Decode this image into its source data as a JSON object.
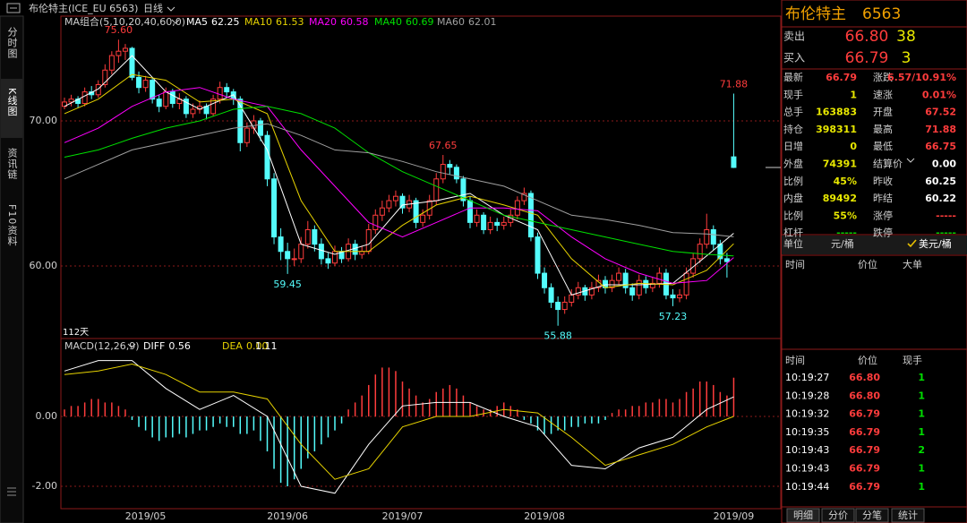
{
  "header": {
    "instrument": "布伦特主(ICE_EU 6563)",
    "period": "日线"
  },
  "side_tabs": [
    "分时图",
    "K线图",
    "资讯链",
    "F10资料"
  ],
  "chart_data": [
    {
      "type": "candlestick",
      "indicator": "MA组合(5,10,20,40,60,0)",
      "days_label": "112天",
      "up_color": "#ff3c3c",
      "down_color": "#54fcfc",
      "grid": true,
      "ylim": [
        55.06,
        77.22
      ],
      "yticks": [
        {
          "value": 70,
          "label": "70.00"
        },
        {
          "value": 60,
          "label": "60.00"
        }
      ],
      "xticks": [
        {
          "value": 12,
          "label": "2019/05"
        },
        {
          "value": 33,
          "label": "2019/06"
        },
        {
          "value": 50,
          "label": "2019/07"
        },
        {
          "value": 71,
          "label": "2019/08"
        },
        {
          "value": 99,
          "label": "2019/09"
        }
      ],
      "candles": [
        [
          71.0,
          71.6,
          70.8,
          71.3
        ],
        [
          71.3,
          71.8,
          71.0,
          71.5
        ],
        [
          71.5,
          71.7,
          70.9,
          71.2
        ],
        [
          71.2,
          72.3,
          71.0,
          72.0
        ],
        [
          72.0,
          72.4,
          71.5,
          71.8
        ],
        [
          71.8,
          72.8,
          71.6,
          72.5
        ],
        [
          72.5,
          73.9,
          72.3,
          73.5
        ],
        [
          73.5,
          74.8,
          73.2,
          74.5
        ],
        [
          74.5,
          75.6,
          74.0,
          74.8
        ],
        [
          74.8,
          75.3,
          74.2,
          75.0
        ],
        [
          75.0,
          75.1,
          72.8,
          73.0
        ],
        [
          73.0,
          73.4,
          71.9,
          72.3
        ],
        [
          72.3,
          73.1,
          72.0,
          72.8
        ],
        [
          72.8,
          73.0,
          71.2,
          71.5
        ],
        [
          71.5,
          71.8,
          70.6,
          71.0
        ],
        [
          71.0,
          72.3,
          70.8,
          72.0
        ],
        [
          72.0,
          72.2,
          70.9,
          71.2
        ],
        [
          71.2,
          71.9,
          70.8,
          71.5
        ],
        [
          71.5,
          71.7,
          70.2,
          70.5
        ],
        [
          70.5,
          71.2,
          70.2,
          70.8
        ],
        [
          70.8,
          71.4,
          70.5,
          71.0
        ],
        [
          71.0,
          71.2,
          70.1,
          70.5
        ],
        [
          70.5,
          71.8,
          70.3,
          71.5
        ],
        [
          71.5,
          72.7,
          71.2,
          72.3
        ],
        [
          72.3,
          72.6,
          71.6,
          72.0
        ],
        [
          72.0,
          72.2,
          71.1,
          71.5
        ],
        [
          71.5,
          71.7,
          67.9,
          68.5
        ],
        [
          68.5,
          69.9,
          68.2,
          69.5
        ],
        [
          69.5,
          70.4,
          69.1,
          70.0
        ],
        [
          70.0,
          70.2,
          68.6,
          69.0
        ],
        [
          69.0,
          69.3,
          65.5,
          66.0
        ],
        [
          66.0,
          66.4,
          61.5,
          62.0
        ],
        [
          62.0,
          62.6,
          60.4,
          61.0
        ],
        [
          61.0,
          61.6,
          59.45,
          60.5
        ],
        [
          60.5,
          61.2,
          60.0,
          60.5
        ],
        [
          60.5,
          62.0,
          60.2,
          61.5
        ],
        [
          61.5,
          63.1,
          61.2,
          62.5
        ],
        [
          62.5,
          62.8,
          61.0,
          61.5
        ],
        [
          61.5,
          61.9,
          60.1,
          60.5
        ],
        [
          60.5,
          60.9,
          59.8,
          60.2
        ],
        [
          60.2,
          61.4,
          60.0,
          61.0
        ],
        [
          61.0,
          61.3,
          60.2,
          60.5
        ],
        [
          60.5,
          61.9,
          60.3,
          61.5
        ],
        [
          61.5,
          61.8,
          60.4,
          60.8
        ],
        [
          60.8,
          61.4,
          60.5,
          61.0
        ],
        [
          61.0,
          62.9,
          60.8,
          62.5
        ],
        [
          62.5,
          63.9,
          62.2,
          63.5
        ],
        [
          63.5,
          64.5,
          63.1,
          64.0
        ],
        [
          64.0,
          64.9,
          63.7,
          64.5
        ],
        [
          64.5,
          65.2,
          64.1,
          64.8
        ],
        [
          64.8,
          65.0,
          63.6,
          64.0
        ],
        [
          64.0,
          64.9,
          63.7,
          64.5
        ],
        [
          64.5,
          64.7,
          62.6,
          63.0
        ],
        [
          63.0,
          63.9,
          62.7,
          63.5
        ],
        [
          63.5,
          64.9,
          63.2,
          64.5
        ],
        [
          64.5,
          66.4,
          64.2,
          66.0
        ],
        [
          66.0,
          67.65,
          65.7,
          67.0
        ],
        [
          67.0,
          67.3,
          66.3,
          66.8
        ],
        [
          66.8,
          67.0,
          65.7,
          66.0
        ],
        [
          66.0,
          66.2,
          64.1,
          64.5
        ],
        [
          64.5,
          64.8,
          62.6,
          63.0
        ],
        [
          63.0,
          63.9,
          62.7,
          63.5
        ],
        [
          63.5,
          63.7,
          62.2,
          62.5
        ],
        [
          62.5,
          63.4,
          62.2,
          63.0
        ],
        [
          63.0,
          63.3,
          62.4,
          62.8
        ],
        [
          62.8,
          63.4,
          62.5,
          63.0
        ],
        [
          63.0,
          63.9,
          62.7,
          63.5
        ],
        [
          63.5,
          64.8,
          63.2,
          64.5
        ],
        [
          64.5,
          65.4,
          64.2,
          65.0
        ],
        [
          65.0,
          65.2,
          61.7,
          62.0
        ],
        [
          62.0,
          62.3,
          59.1,
          59.5
        ],
        [
          59.5,
          59.9,
          58.1,
          58.5
        ],
        [
          58.5,
          58.8,
          57.1,
          57.5
        ],
        [
          57.5,
          57.9,
          55.88,
          57.0
        ],
        [
          57.0,
          57.9,
          56.7,
          57.5
        ],
        [
          57.5,
          58.4,
          57.2,
          58.0
        ],
        [
          58.0,
          58.9,
          57.7,
          58.5
        ],
        [
          58.5,
          58.7,
          57.6,
          58.0
        ],
        [
          58.0,
          58.9,
          57.7,
          58.5
        ],
        [
          58.5,
          59.4,
          58.2,
          59.0
        ],
        [
          59.0,
          59.3,
          58.1,
          58.5
        ],
        [
          58.5,
          59.4,
          58.2,
          59.0
        ],
        [
          59.0,
          59.9,
          58.7,
          59.5
        ],
        [
          59.5,
          59.8,
          58.1,
          58.5
        ],
        [
          58.5,
          58.8,
          57.6,
          58.0
        ],
        [
          58.0,
          59.4,
          57.7,
          59.0
        ],
        [
          59.0,
          59.3,
          58.1,
          58.5
        ],
        [
          58.5,
          59.2,
          58.2,
          58.8
        ],
        [
          58.8,
          59.9,
          58.5,
          59.5
        ],
        [
          59.5,
          59.8,
          57.7,
          58.0
        ],
        [
          58.0,
          58.4,
          57.23,
          57.8
        ],
        [
          57.8,
          58.4,
          57.5,
          58.0
        ],
        [
          58.0,
          59.9,
          57.7,
          59.5
        ],
        [
          59.5,
          60.9,
          59.2,
          60.5
        ],
        [
          60.5,
          61.9,
          60.2,
          61.5
        ],
        [
          61.5,
          63.6,
          61.2,
          62.5
        ],
        [
          62.5,
          62.8,
          61.1,
          61.5
        ],
        [
          61.5,
          61.8,
          60.1,
          60.5
        ],
        [
          60.5,
          60.9,
          59.2,
          60.3
        ],
        [
          67.52,
          71.88,
          66.75,
          66.79
        ]
      ],
      "annotations": [
        {
          "value": 75.6,
          "label": "75.60"
        },
        {
          "value": 67.65,
          "label": "67.65"
        },
        {
          "value": 71.88,
          "label": "71.88"
        },
        {
          "value": 59.45,
          "label": "59.45"
        },
        {
          "value": 55.88,
          "label": "55.88"
        },
        {
          "value": 57.23,
          "label": "57.23"
        }
      ],
      "x": [
        0,
        5,
        10,
        15,
        20,
        25,
        30,
        35,
        40,
        45,
        50,
        55,
        60,
        65,
        70,
        75,
        80,
        85,
        90,
        95,
        99
      ],
      "series": [
        {
          "name": "MA5",
          "color": "#ffffff",
          "values": [
            71.0,
            72.2,
            74.5,
            72.0,
            70.8,
            71.8,
            68.0,
            61.5,
            60.8,
            61.5,
            64.2,
            64.5,
            65.0,
            63.5,
            62.5,
            58.0,
            58.7,
            58.7,
            58.8,
            60.7,
            62.25
          ]
        },
        {
          "name": "MA10",
          "color": "#e6d200",
          "values": [
            70.5,
            71.5,
            73.2,
            72.8,
            71.3,
            71.5,
            70.5,
            64.5,
            61.0,
            61.0,
            62.8,
            64.2,
            64.8,
            64.2,
            63.5,
            60.5,
            58.5,
            58.8,
            58.7,
            59.7,
            61.53
          ]
        },
        {
          "name": "MA20",
          "color": "#ff00ff",
          "values": [
            68.5,
            69.5,
            71.0,
            72.0,
            72.3,
            71.5,
            71.0,
            68.0,
            65.5,
            63.0,
            62.0,
            63.0,
            64.0,
            64.0,
            63.8,
            62.0,
            60.5,
            59.5,
            58.8,
            59.0,
            60.58
          ]
        },
        {
          "name": "MA40",
          "color": "#00e000",
          "values": [
            67.5,
            68.0,
            68.8,
            69.5,
            70.0,
            70.8,
            71.0,
            70.5,
            69.5,
            67.8,
            66.5,
            65.5,
            64.5,
            63.5,
            63.0,
            62.5,
            62.0,
            61.5,
            61.0,
            60.8,
            60.69
          ]
        },
        {
          "name": "MA60",
          "color": "#a0a0a0",
          "values": [
            66.0,
            67.0,
            68.0,
            68.5,
            69.0,
            69.5,
            69.8,
            69.0,
            68.0,
            67.8,
            67.2,
            66.5,
            66.0,
            65.5,
            64.5,
            63.5,
            63.2,
            62.8,
            62.3,
            62.2,
            62.01
          ]
        }
      ]
    },
    {
      "type": "macd",
      "title": "MACD(12,26,9)",
      "up_color": "#ff3c3c",
      "down_color": "#54fcfc",
      "grid": true,
      "ylim": [
        -2.64,
        2.18
      ],
      "yticks": [
        {
          "value": 0,
          "label": "0.00"
        },
        {
          "value": -2,
          "label": "-2.00"
        }
      ],
      "histogram": [
        0.2,
        0.3,
        0.3,
        0.4,
        0.5,
        0.5,
        0.4,
        0.4,
        0.3,
        0.2,
        -0.1,
        -0.3,
        -0.4,
        -0.6,
        -0.7,
        -0.6,
        -0.6,
        -0.5,
        -0.6,
        -0.5,
        -0.4,
        -0.4,
        -0.3,
        -0.2,
        -0.3,
        -0.3,
        -0.5,
        -0.5,
        -0.4,
        -0.7,
        -1.0,
        -1.5,
        -1.9,
        -2.0,
        -1.8,
        -1.5,
        -1.2,
        -1.0,
        -0.8,
        -0.6,
        -0.4,
        -0.2,
        0.2,
        0.4,
        0.6,
        0.9,
        1.2,
        1.4,
        1.4,
        1.3,
        1.0,
        0.8,
        0.6,
        0.4,
        0.5,
        0.7,
        0.8,
        0.9,
        0.8,
        0.6,
        0.4,
        0.3,
        0.2,
        0.2,
        0.3,
        0.4,
        0.3,
        0.2,
        -0.1,
        -0.2,
        -0.4,
        -0.5,
        -0.5,
        -0.4,
        -0.4,
        -0.3,
        -0.3,
        -0.2,
        -0.2,
        -0.2,
        -0.1,
        0.1,
        0.2,
        0.2,
        0.3,
        0.3,
        0.4,
        0.4,
        0.5,
        0.5,
        0.4,
        0.5,
        0.7,
        0.8,
        1.0,
        1.0,
        0.9,
        0.7,
        0.6,
        1.11
      ],
      "x": [
        0,
        5,
        10,
        15,
        20,
        25,
        30,
        35,
        40,
        45,
        50,
        55,
        60,
        65,
        70,
        75,
        80,
        85,
        90,
        95,
        99
      ],
      "series": [
        {
          "name": "DIFF",
          "color": "#ffffff",
          "value_label": "0.56",
          "values": [
            1.3,
            1.6,
            1.6,
            0.8,
            0.2,
            0.6,
            0.0,
            -2.0,
            -2.2,
            -0.8,
            0.3,
            0.4,
            0.4,
            0.0,
            -0.3,
            -1.4,
            -1.5,
            -0.9,
            -0.6,
            0.2,
            0.56
          ]
        },
        {
          "name": "DEA",
          "color": "#e6d200",
          "value_label": "0.00",
          "values": [
            1.2,
            1.3,
            1.5,
            1.2,
            0.7,
            0.7,
            0.5,
            -0.8,
            -1.8,
            -1.5,
            -0.3,
            0.0,
            0.0,
            0.2,
            0.1,
            -0.6,
            -1.4,
            -1.1,
            -0.8,
            -0.3,
            0.0
          ]
        }
      ]
    }
  ],
  "quote_panel": {
    "name": "布伦特主",
    "code": "6563",
    "sell": {
      "label": "卖出",
      "price": "66.80",
      "qty": "38"
    },
    "buy": {
      "label": "买入",
      "price": "66.79",
      "qty": "3"
    },
    "stats": [
      [
        {
          "label": "最新",
          "value": "66.79",
          "color": "#ff3c3c"
        },
        {
          "label": "涨跌",
          "value": "6.57/10.91%",
          "color": "#ff3c3c"
        }
      ],
      [
        {
          "label": "现手",
          "value": "1",
          "color": "#e8e800"
        },
        {
          "label": "速涨",
          "value": "0.01%",
          "color": "#ff3c3c"
        }
      ],
      [
        {
          "label": "总手",
          "value": "163883",
          "color": "#e8e800"
        },
        {
          "label": "开盘",
          "value": "67.52",
          "color": "#ff3c3c"
        }
      ],
      [
        {
          "label": "持仓",
          "value": "398311",
          "color": "#e8e800"
        },
        {
          "label": "最高",
          "value": "71.88",
          "color": "#ff3c3c"
        }
      ],
      [
        {
          "label": "日增",
          "value": "0",
          "color": "#e8e800"
        },
        {
          "label": "最低",
          "value": "66.75",
          "color": "#ff3c3c"
        }
      ],
      [
        {
          "label": "外盘",
          "value": "74391",
          "color": "#e8e800"
        },
        {
          "label": "结算价",
          "value": "0.00",
          "color": "#ffffff"
        }
      ],
      [
        {
          "label": "比例",
          "value": "45%",
          "color": "#e8e800"
        },
        {
          "label": "昨收",
          "value": "60.25",
          "color": "#ffffff"
        }
      ],
      [
        {
          "label": "内盘",
          "value": "89492",
          "color": "#e8e800"
        },
        {
          "label": "昨结",
          "value": "60.22",
          "color": "#ffffff"
        }
      ],
      [
        {
          "label": "比例",
          "value": "55%",
          "color": "#e8e800"
        },
        {
          "label": "涨停",
          "value": "-----",
          "color": "#ff3c3c"
        }
      ],
      [
        {
          "label": "杠杆",
          "value": "-----",
          "color": "#00c800"
        },
        {
          "label": "跌停",
          "value": "-----",
          "color": "#00c800"
        }
      ]
    ],
    "unit": {
      "label": "单位",
      "options": [
        "元/桶",
        "美元/桶"
      ]
    },
    "big_order_header": [
      "时间",
      "价位",
      "大单"
    ],
    "trades_header": [
      "时间",
      "价位",
      "现手"
    ],
    "trades": [
      {
        "time": "10:19:27",
        "price": "66.80",
        "volume": "1"
      },
      {
        "time": "10:19:28",
        "price": "66.80",
        "volume": "1"
      },
      {
        "time": "10:19:32",
        "price": "66.79",
        "volume": "1"
      },
      {
        "time": "10:19:35",
        "price": "66.79",
        "volume": "1"
      },
      {
        "time": "10:19:43",
        "price": "66.79",
        "volume": "2"
      },
      {
        "time": "10:19:43",
        "price": "66.79",
        "volume": "1"
      },
      {
        "time": "10:19:44",
        "price": "66.79",
        "volume": "1"
      }
    ],
    "tabs": [
      "明细",
      "分价",
      "分笔",
      "统计"
    ]
  }
}
